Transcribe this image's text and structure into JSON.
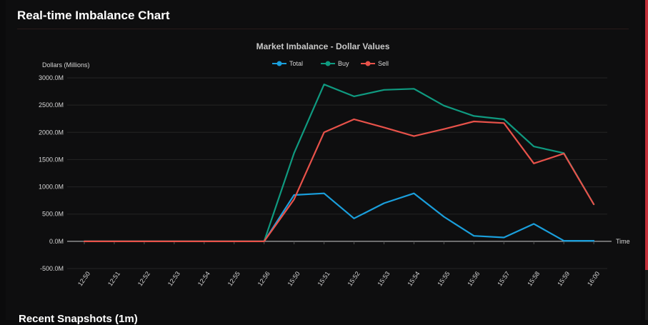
{
  "panel": {
    "title": "Real-time Imbalance Chart"
  },
  "next_section": {
    "title": "Recent Snapshots (1m)"
  },
  "colors": {
    "total": "#1a9fdc",
    "buy": "#0f9a80",
    "sell": "#e8524a",
    "grid": "#242424",
    "axis": "#cfcfcf",
    "text": "#d6d6d6"
  },
  "chart_data": {
    "type": "line",
    "title": "Market Imbalance - Dollar Values",
    "ylabel": "Dollars (Millions)",
    "xlabel": "Time",
    "legend_position": "top-center",
    "grid": true,
    "ylim": [
      -500,
      3000
    ],
    "y_ticks": [
      "3000.0M",
      "2500.0M",
      "2000.0M",
      "1500.0M",
      "1000.0M",
      "500.0M",
      "0.0M",
      "-500.0M"
    ],
    "y_tick_values": [
      3000,
      2500,
      2000,
      1500,
      1000,
      500,
      0,
      -500
    ],
    "categories": [
      "12:50",
      "12:51",
      "12:52",
      "12:53",
      "12:54",
      "12:55",
      "12:56",
      "15:50",
      "15:51",
      "15:52",
      "15:53",
      "15:54",
      "15:55",
      "15:56",
      "15:57",
      "15:58",
      "15:59",
      "16:00"
    ],
    "series": [
      {
        "name": "Total",
        "color": "#1a9fdc",
        "values": [
          0,
          0,
          0,
          0,
          0,
          0,
          0,
          850,
          880,
          420,
          700,
          880,
          450,
          100,
          70,
          320,
          10,
          10
        ]
      },
      {
        "name": "Buy",
        "color": "#0f9a80",
        "values": [
          0,
          0,
          0,
          0,
          0,
          0,
          0,
          1620,
          2880,
          2660,
          2780,
          2800,
          2490,
          2300,
          2240,
          1740,
          1620,
          680
        ]
      },
      {
        "name": "Sell",
        "color": "#e8524a",
        "values": [
          0,
          0,
          0,
          0,
          0,
          0,
          0,
          770,
          2000,
          2240,
          2090,
          1930,
          2060,
          2200,
          2170,
          1430,
          1610,
          680
        ]
      }
    ]
  }
}
